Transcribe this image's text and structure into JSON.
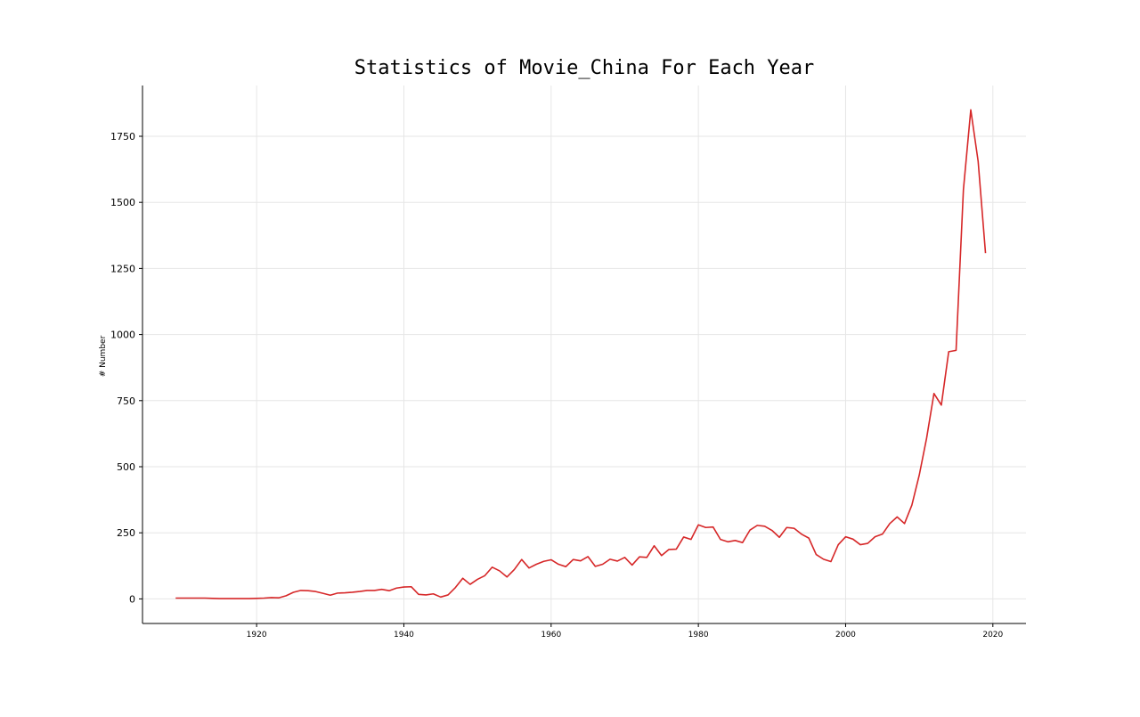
{
  "chart_data": {
    "type": "line",
    "title": "Statistics of Movie_China For Each Year",
    "xlabel": "",
    "ylabel": "# Number",
    "xlim": [
      1904.5,
      2024.5
    ],
    "ylim": [
      -93,
      1942
    ],
    "xticks": [
      "1920",
      "1940",
      "1960",
      "1980",
      "2000",
      "2020"
    ],
    "yticks": [
      "0",
      "250",
      "500",
      "750",
      "1000",
      "1250",
      "1500",
      "1750"
    ],
    "grid": true,
    "line_color": "#d62728",
    "series": [
      {
        "x": [
          1909,
          1910,
          1911,
          1912,
          1913,
          1914,
          1915,
          1916,
          1917,
          1918,
          1919,
          1920,
          1921,
          1922,
          1923,
          1924,
          1925,
          1926,
          1927,
          1928,
          1929,
          1930,
          1931,
          1932,
          1933,
          1934,
          1935,
          1936,
          1937,
          1938,
          1939,
          1940,
          1941,
          1942,
          1943,
          1944,
          1945,
          1946,
          1947,
          1948,
          1949,
          1950,
          1951,
          1952,
          1953,
          1954,
          1955,
          1956,
          1957,
          1958,
          1959,
          1960,
          1961,
          1962,
          1963,
          1964,
          1965,
          1966,
          1967,
          1968,
          1969,
          1970,
          1971,
          1972,
          1973,
          1974,
          1975,
          1976,
          1977,
          1978,
          1979,
          1980,
          1981,
          1982,
          1983,
          1984,
          1985,
          1986,
          1987,
          1988,
          1989,
          1990,
          1991,
          1992,
          1993,
          1994,
          1995,
          1996,
          1997,
          1998,
          1999,
          2000,
          2001,
          2002,
          2003,
          2004,
          2005,
          2006,
          2007,
          2008,
          2009,
          2010,
          2011,
          2012,
          2013,
          2014,
          2015,
          2016,
          2017,
          2018,
          2019
        ],
        "values": [
          3,
          3,
          3,
          3,
          3,
          2,
          1,
          1,
          1,
          1,
          1,
          2,
          3,
          5,
          4,
          12,
          25,
          32,
          31,
          28,
          21,
          14,
          22,
          23,
          25,
          28,
          32,
          32,
          36,
          31,
          41,
          45,
          46,
          17,
          15,
          19,
          7,
          15,
          43,
          78,
          55,
          74,
          88,
          120,
          106,
          83,
          111,
          149,
          117,
          131,
          142,
          148,
          131,
          122,
          149,
          144,
          160,
          123,
          131,
          150,
          143,
          157,
          128,
          159,
          157,
          201,
          164,
          187,
          188,
          234,
          225,
          280,
          270,
          272,
          225,
          216,
          221,
          213,
          260,
          278,
          275,
          259,
          233,
          270,
          267,
          245,
          230,
          168,
          150,
          141,
          205,
          235,
          226,
          205,
          210,
          235,
          245,
          285,
          310,
          285,
          355,
          468,
          608,
          777,
          733,
          935,
          940,
          1548,
          1850,
          1655,
          1308
        ]
      }
    ]
  }
}
